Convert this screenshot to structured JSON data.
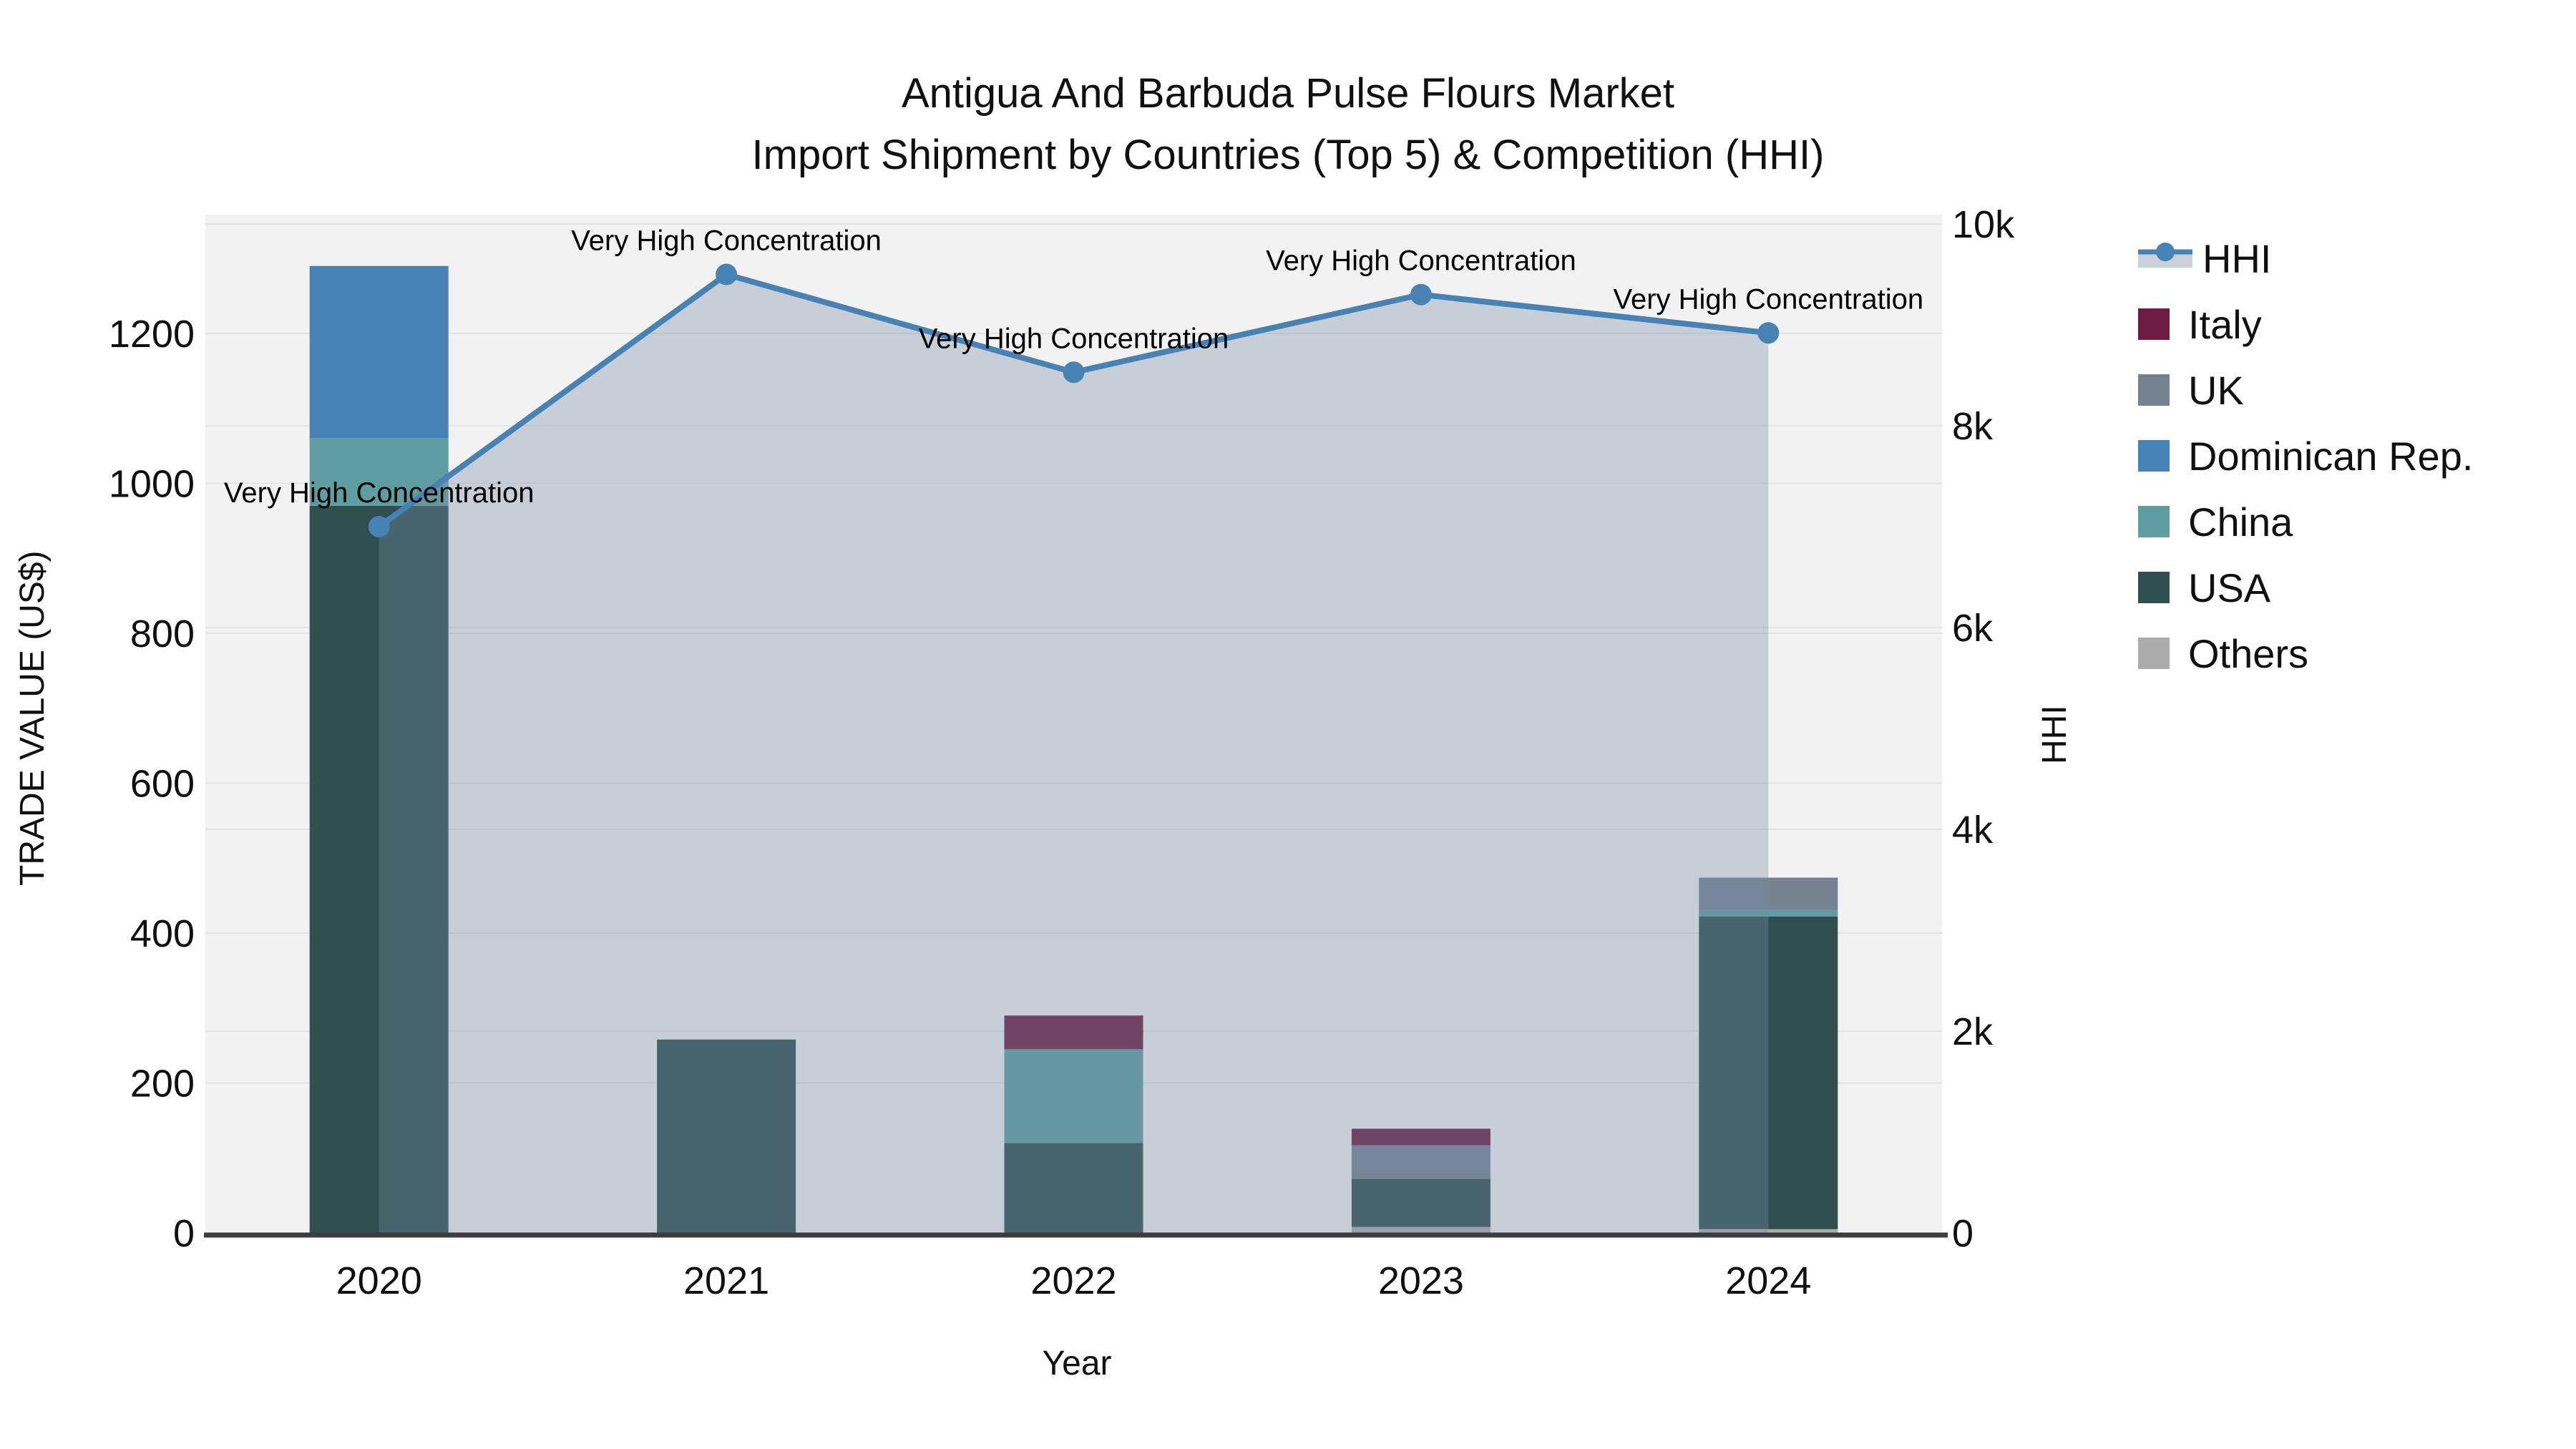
{
  "title": {
    "line1": "Antigua And Barbuda Pulse Flours Market",
    "line2": "Import Shipment by Countries (Top 5) & Competition (HHI)"
  },
  "axes": {
    "x": {
      "title": "Year",
      "tick_labels": [
        "2020",
        "2021",
        "2022",
        "2023",
        "2024"
      ]
    },
    "y_left": {
      "title": "TRADE VALUE (US$)",
      "tick_labels": [
        "0",
        "200",
        "400",
        "600",
        "800",
        "1000",
        "1200"
      ],
      "tick_values": [
        0,
        200,
        400,
        600,
        800,
        1000,
        1200
      ]
    },
    "y_right": {
      "title": "HHI",
      "tick_labels": [
        "0",
        "2k",
        "4k",
        "6k",
        "8k",
        "10k"
      ],
      "tick_values": [
        0,
        2000,
        4000,
        6000,
        8000,
        10000
      ]
    }
  },
  "legend": {
    "items": [
      {
        "label": "HHI",
        "type": "line",
        "color": "#4682B4"
      },
      {
        "label": "Italy",
        "type": "swatch",
        "color": "#6E1C41"
      },
      {
        "label": "UK",
        "type": "swatch",
        "color": "#76828F"
      },
      {
        "label": "Dominican Rep.",
        "type": "swatch",
        "color": "#4682B4"
      },
      {
        "label": "China",
        "type": "swatch",
        "color": "#5F9EA0"
      },
      {
        "label": "USA",
        "type": "swatch",
        "color": "#2F4F4F"
      },
      {
        "label": "Others",
        "type": "swatch",
        "color": "#ABABAB"
      }
    ]
  },
  "chart_data": {
    "type": "bar+line",
    "title": "Antigua And Barbuda Pulse Flours Market — Import Shipment by Countries (Top 5) & Competition (HHI)",
    "categories": [
      "2020",
      "2021",
      "2022",
      "2023",
      "2024"
    ],
    "xlabel": "Year",
    "ylabel_left": "TRADE VALUE (US$)",
    "ylabel_right": "HHI",
    "ylim_left": [
      0,
      1365
    ],
    "ylim_right": [
      0,
      10000
    ],
    "grid": true,
    "legend_position": "right",
    "bar_series_bottom_to_top": [
      {
        "name": "Others",
        "color": "#ABABAB",
        "values": [
          0,
          0,
          0,
          8,
          5
        ]
      },
      {
        "name": "USA",
        "color": "#2F4F4F",
        "values": [
          970,
          258,
          120,
          64,
          417
        ]
      },
      {
        "name": "China",
        "color": "#5F9EA0",
        "values": [
          90,
          0,
          125,
          0,
          9
        ]
      },
      {
        "name": "Dominican Rep.",
        "color": "#4682B4",
        "values": [
          230,
          0,
          0,
          0,
          0
        ]
      },
      {
        "name": "UK",
        "color": "#76828F",
        "values": [
          0,
          0,
          0,
          45,
          43
        ]
      },
      {
        "name": "Italy",
        "color": "#6E1C41",
        "values": [
          0,
          0,
          45,
          22,
          0
        ]
      }
    ],
    "line_series": {
      "name": "HHI",
      "axis": "right",
      "color": "#4682B4",
      "area_fill": "rgba(120,140,165,0.35)",
      "values": [
        7000,
        9500,
        8530,
        9300,
        8920
      ]
    },
    "annotations": [
      {
        "category": "2020",
        "text": "Very High Concentration"
      },
      {
        "category": "2021",
        "text": "Very High Concentration"
      },
      {
        "category": "2022",
        "text": "Very High Concentration"
      },
      {
        "category": "2023",
        "text": "Very High Concentration"
      },
      {
        "category": "2024",
        "text": "Very High Concentration"
      }
    ]
  }
}
